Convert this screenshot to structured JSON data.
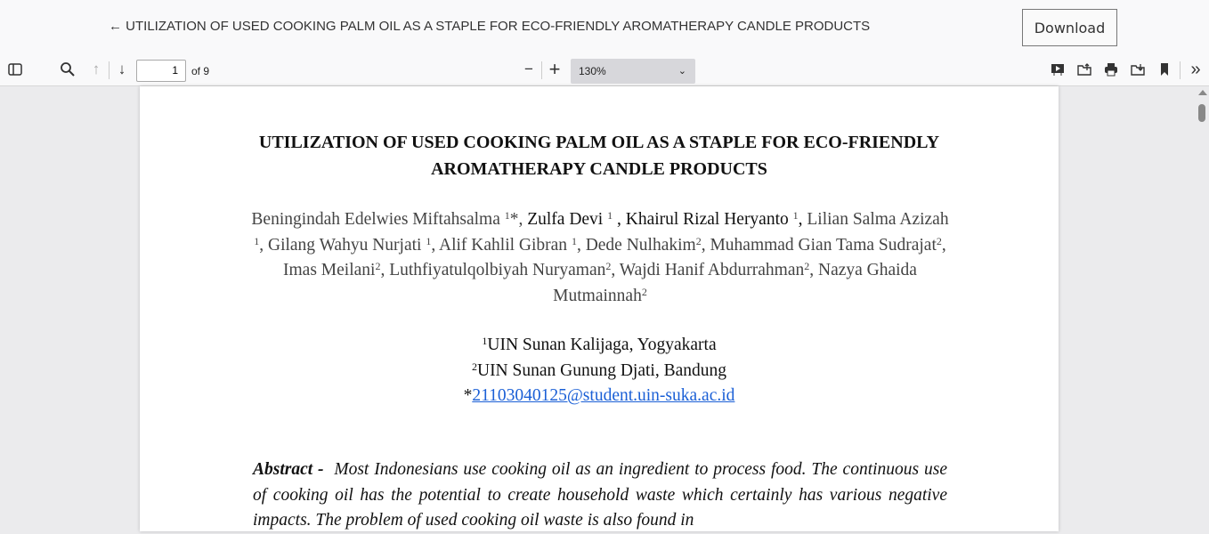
{
  "header": {
    "back_icon": "←",
    "title": "UTILIZATION OF USED COOKING PALM OIL AS A STAPLE FOR ECO-FRIENDLY AROMATHERAPY CANDLE PRODUCTS",
    "download_label": "Download"
  },
  "toolbar": {
    "page": "1",
    "of_pages": "of 9",
    "zoom": "130%"
  },
  "document": {
    "title_line1": "UTILIZATION OF USED COOKING PALM OIL AS A STAPLE FOR ECO-FRIENDLY",
    "title_line2": "AROMATHERAPY CANDLE PRODUCTS",
    "authors": [
      {
        "name": "Beningindah Edelwies Miftahsalma ",
        "sup": "1",
        "after": "*, "
      },
      {
        "name": "Zulfa Devi ",
        "sup": "1",
        "after": " , "
      },
      {
        "name": "Khairul Rizal Heryanto ",
        "sup": "1",
        "after": ", "
      },
      {
        "name": "Lilian Salma Azizah ",
        "sup": "1",
        "after": ", "
      },
      {
        "name": "Gilang Wahyu Nurjati ",
        "sup": "1",
        "after": ", "
      },
      {
        "name": "Alif Kahlil Gibran ",
        "sup": "1",
        "after": ", "
      },
      {
        "name": "Dede Nulhakim",
        "sup": "2",
        "after": ", "
      },
      {
        "name": "Muhammad Gian Tama Sudrajat",
        "sup": "2",
        "after": ", "
      },
      {
        "name": "Imas Meilani",
        "sup": "2",
        "after": ", "
      },
      {
        "name": "Luthfiyatulqolbiyah Nuryaman",
        "sup": "2",
        "after": ", "
      },
      {
        "name": "Wajdi Hanif Abdurrahman",
        "sup": "2",
        "after": ", "
      },
      {
        "name": "Nazya Ghaida Mutmainnah",
        "sup": "2",
        "after": ""
      }
    ],
    "affiliations": [
      {
        "sup": "1",
        "name": "UIN Sunan Kalijaga, Yogyakarta"
      },
      {
        "sup": "2",
        "name": "UIN Sunan Gunung Djati, Bandung"
      }
    ],
    "email_prefix": "*",
    "email": "21103040125@student.uin-suka.ac.id",
    "abstract_label": "Abstract -",
    "abstract_text": "Most Indonesians use cooking oil as an ingredient to process food. The continuous use of cooking oil has the potential to create household waste which certainly has various negative impacts. The problem of used cooking oil waste is also found in"
  }
}
